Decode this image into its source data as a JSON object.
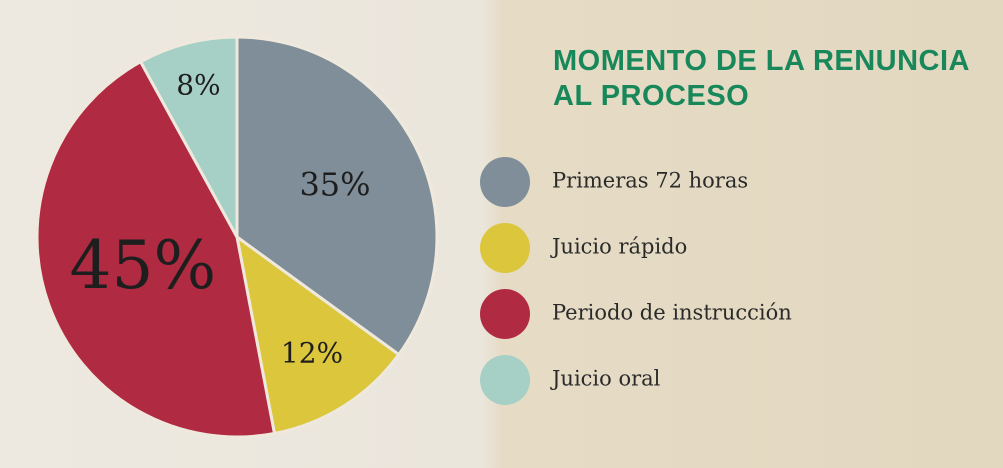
{
  "chart_data": {
    "type": "pie",
    "title": "MOMENTO DE LA RENUNCIA AL PROCESO",
    "categories": [
      "Primeras 72 horas",
      "Juicio rápido",
      "Periodo de instrucción",
      "Juicio oral"
    ],
    "values": [
      35,
      12,
      45,
      8
    ],
    "value_labels": [
      "35%",
      "12%",
      "45%",
      "8%"
    ],
    "colors": [
      "#7f8e98",
      "#dbc63c",
      "#b02b41",
      "#a6cfc5"
    ]
  }
}
